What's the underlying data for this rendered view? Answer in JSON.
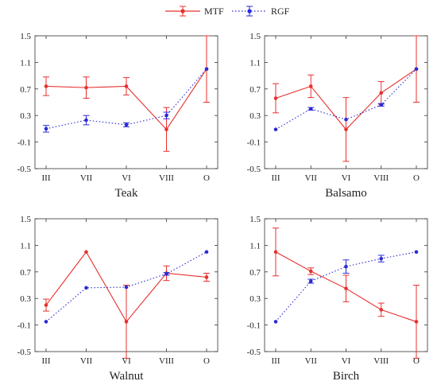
{
  "legend": {
    "placement": "top-center",
    "entries": [
      {
        "label": "MTF",
        "color": "#e8302e",
        "style": "solid",
        "marker": "dot"
      },
      {
        "label": "RGF",
        "color": "#2b2bd6",
        "style": "dotted",
        "marker": "dot"
      }
    ]
  },
  "chart_data": [
    {
      "type": "line",
      "title": "Teak",
      "categories": [
        "III",
        "VII",
        "VI",
        "VIII",
        "O"
      ],
      "ylim": [
        -0.5,
        1.5
      ],
      "yticks": [
        "-0.5",
        "-0.1",
        "0.3",
        "0.7",
        "1.1",
        "1.5"
      ],
      "grid": false,
      "series": [
        {
          "name": "MTF",
          "color": "#e8302e",
          "style": "solid",
          "values": [
            0.74,
            0.72,
            0.74,
            0.09,
            1.0
          ],
          "err": [
            0.14,
            0.16,
            0.13,
            0.33,
            0.5
          ]
        },
        {
          "name": "RGF",
          "color": "#2b2bd6",
          "style": "dotted",
          "values": [
            0.1,
            0.23,
            0.16,
            0.3,
            1.0
          ],
          "err": [
            0.05,
            0.07,
            0.03,
            0.05,
            0.0
          ]
        }
      ]
    },
    {
      "type": "line",
      "title": "Balsamo",
      "categories": [
        "III",
        "VII",
        "VI",
        "VIII",
        "O"
      ],
      "ylim": [
        -0.5,
        1.5
      ],
      "yticks": [
        "-0.5",
        "-0.1",
        "0.3",
        "0.7",
        "1.1",
        "1.5"
      ],
      "grid": false,
      "series": [
        {
          "name": "MTF",
          "color": "#e8302e",
          "style": "solid",
          "values": [
            0.56,
            0.74,
            0.09,
            0.64,
            1.0
          ],
          "err": [
            0.22,
            0.17,
            0.48,
            0.17,
            0.5
          ]
        },
        {
          "name": "RGF",
          "color": "#2b2bd6",
          "style": "dotted",
          "values": [
            0.09,
            0.4,
            0.24,
            0.46,
            1.0
          ],
          "err": [
            0.0,
            0.02,
            0.0,
            0.02,
            0.0
          ]
        }
      ]
    },
    {
      "type": "line",
      "title": "Walnut",
      "categories": [
        "III",
        "VII",
        "VI",
        "VIII",
        "O"
      ],
      "ylim": [
        -0.5,
        1.5
      ],
      "yticks": [
        "-0.5",
        "-0.1",
        "0.3",
        "0.7",
        "1.1",
        "1.5"
      ],
      "grid": false,
      "series": [
        {
          "name": "MTF",
          "color": "#e8302e",
          "style": "solid",
          "values": [
            0.2,
            1.0,
            -0.05,
            0.68,
            0.62
          ],
          "err": [
            0.09,
            0.0,
            0.55,
            0.11,
            0.06
          ]
        },
        {
          "name": "RGF",
          "color": "#2b2bd6",
          "style": "dotted",
          "values": [
            -0.05,
            0.46,
            0.47,
            0.67,
            1.0
          ],
          "err": [
            0.0,
            0.0,
            0.0,
            0.02,
            0.0
          ]
        }
      ]
    },
    {
      "type": "line",
      "title": "Birch",
      "categories": [
        "III",
        "VII",
        "VI",
        "VIII",
        "O"
      ],
      "ylim": [
        -0.5,
        1.5
      ],
      "yticks": [
        "-0.5",
        "-0.1",
        "0.3",
        "0.7",
        "1.1",
        "1.5"
      ],
      "grid": false,
      "series": [
        {
          "name": "MTF",
          "color": "#e8302e",
          "style": "solid",
          "values": [
            1.0,
            0.71,
            0.45,
            0.13,
            -0.05
          ],
          "err": [
            0.36,
            0.05,
            0.2,
            0.1,
            0.55
          ]
        },
        {
          "name": "RGF",
          "color": "#2b2bd6",
          "style": "dotted",
          "values": [
            -0.05,
            0.56,
            0.78,
            0.9,
            1.0
          ],
          "err": [
            0.0,
            0.03,
            0.1,
            0.05,
            0.0
          ]
        }
      ]
    }
  ]
}
